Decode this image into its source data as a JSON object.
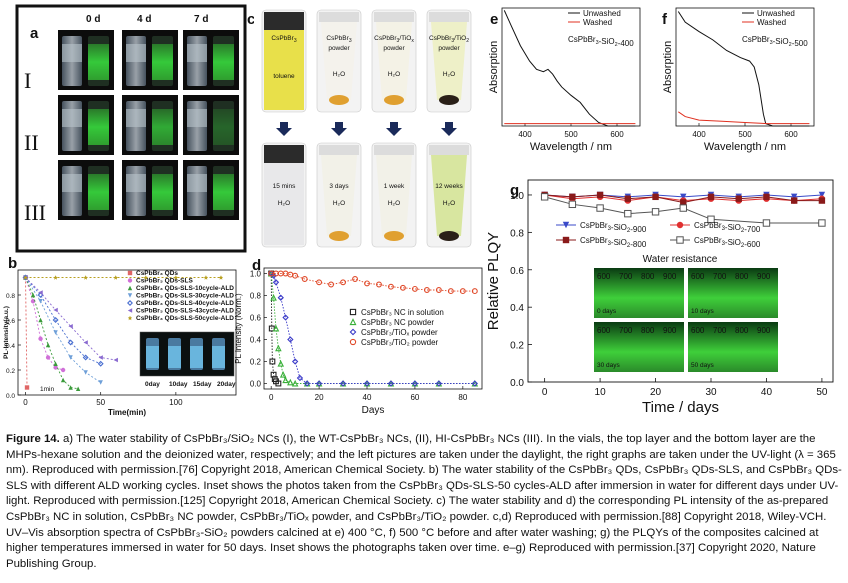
{
  "panel_a": {
    "letter": "a",
    "time_labels": [
      "0 d",
      "4 d",
      "7 d"
    ],
    "row_labels": [
      "I",
      "II",
      "III"
    ]
  },
  "panel_c": {
    "letter": "c",
    "top_labels": [
      {
        "main": "CsPbBr",
        "sub": "3",
        "tail": "",
        "line2": "toluene"
      },
      {
        "main": "CsPbBr",
        "sub": "3",
        "tail": "",
        "line2": "powder",
        "line3": "H₂O"
      },
      {
        "main": "CsPbBr",
        "sub": "3",
        "tail": "/TiO",
        "sub2": "x",
        "line2": "powder",
        "line3": "H₂O"
      },
      {
        "main": "CsPbBr",
        "sub": "3",
        "tail": "/TiO",
        "sub2": "2",
        "line2": "powder",
        "line3": "H₂O"
      }
    ],
    "bottom_labels": [
      "15 mins",
      "3 days",
      "1 week",
      "12 weeks"
    ],
    "bottom_solvent": "H₂O"
  },
  "caption": {
    "lead": "Figure 14.",
    "text": " a) The water stability of CsPbBr₃/SiO₂ NCs (I), the WT-CsPbBr₃ NCs, (II), HI-CsPbBr₃ NCs (III). In the vials, the top layer and the bottom layer are the MHPs-hexane solution and the deionized water, respectively; and the left pictures are taken under the daylight, the right graphs are taken under the UV-light (λ = 365 nm). Reproduced with permission.[76] Copyright 2018, American Chemical Society. b) The water stability of the CsPbBr₃ QDs, CsPbBr₃ QDs-SLS, and CsPbBr₃ QDs-SLS with different ALD working cycles. Inset shows the photos taken from the CsPbBr₃ QDs-SLS-50 cycles-ALD after immersion in water for different days under UV-light. Reproduced with permission.[125] Copyright 2018, American Chemical Society. c) The water stability and d) the corresponding PL intensity of the as-prepared CsPbBr₃ NC in solution, CsPbBr₃ NC powder, CsPbBr₃/TiOₓ powder, and CsPbBr₃/TiO₂ powder. c,d) Reproduced with permission.[88] Copyright 2018, Wiley-VCH. UV–Vis absorption spectra of CsPbBr₃-SiO₂ powders calcined at e) 400 °C, f) 500 °C before and after water washing; g) the PLQYs of the composites calcined at higher temperatures immersed in water for 50 days. Inset shows the photographs taken over time. e–g) Reproduced with permission.[37] Copyright 2020, Nature Publishing Group."
  },
  "chart_data": [
    {
      "panel": "b",
      "type": "line",
      "xlabel": "Time(min)",
      "ylabel": "PL-Intensity(a.u.)",
      "xlim": [
        -5,
        140
      ],
      "ylim": [
        0,
        1.0
      ],
      "xticks": [
        0,
        50,
        100
      ],
      "yticks": [
        0.0,
        0.2,
        0.4,
        0.6,
        0.8
      ],
      "annotation": "1min",
      "inset_labels": [
        "0day",
        "10day",
        "15day",
        "20day"
      ],
      "series": [
        {
          "name": "CsPbBr₃ QDs",
          "color": "#e06666",
          "marker": "square",
          "x": [
            0,
            1
          ],
          "y": [
            0.94,
            0.06
          ]
        },
        {
          "name": "CsPbBr₃ QDs-SLS",
          "color": "#d070d8",
          "marker": "circle",
          "x": [
            0,
            5,
            10,
            15,
            20,
            25
          ],
          "y": [
            0.94,
            0.75,
            0.45,
            0.3,
            0.22,
            0.2
          ]
        },
        {
          "name": "CsPbBr₃ QDs-SLS-10cycle-ALD",
          "color": "#3a9a3a",
          "marker": "triangle",
          "x": [
            0,
            5,
            10,
            15,
            20,
            25,
            30,
            35
          ],
          "y": [
            0.94,
            0.8,
            0.6,
            0.4,
            0.25,
            0.12,
            0.06,
            0.05
          ]
        },
        {
          "name": "CsPbBr₃ QDs-SLS-30cycle-ALD",
          "color": "#6e9fd8",
          "marker": "triangle-down",
          "x": [
            0,
            10,
            20,
            30,
            40,
            50
          ],
          "y": [
            0.94,
            0.75,
            0.5,
            0.3,
            0.18,
            0.1
          ]
        },
        {
          "name": "CsPbBr₃ QDs-SLS-40cycle-ALD",
          "color": "#4a6fd0",
          "marker": "diamond",
          "x": [
            0,
            10,
            20,
            30,
            40,
            50
          ],
          "y": [
            0.94,
            0.8,
            0.6,
            0.42,
            0.3,
            0.25
          ]
        },
        {
          "name": "CsPbBr₃ QDs-SLS-43cycle-ALD",
          "color": "#8a6ad0",
          "marker": "triangle-left",
          "x": [
            0,
            10,
            20,
            30,
            40,
            50,
            60
          ],
          "y": [
            0.94,
            0.82,
            0.68,
            0.55,
            0.42,
            0.3,
            0.28
          ]
        },
        {
          "name": "CsPbBr₃ QDs-SLS-50cycle-ALD",
          "color": "#b8a020",
          "marker": "star",
          "x": [
            0,
            20,
            40,
            60,
            80,
            100,
            120,
            130
          ],
          "y": [
            0.94,
            0.94,
            0.94,
            0.94,
            0.94,
            0.94,
            0.94,
            0.94
          ]
        }
      ]
    },
    {
      "panel": "d",
      "type": "scatter",
      "xlabel": "Days",
      "ylabel": "PL intensity (Norm.)",
      "xlim": [
        -3,
        88
      ],
      "ylim": [
        -0.05,
        1.05
      ],
      "xticks": [
        0,
        20,
        40,
        60,
        80
      ],
      "yticks": [
        0.0,
        0.2,
        0.4,
        0.6,
        0.8,
        1.0
      ],
      "series": [
        {
          "name": "CsPbBr₃ NC in solution",
          "color": "#222222",
          "marker": "square",
          "x": [
            0,
            0.25,
            0.5,
            1,
            1.5,
            2,
            3
          ],
          "y": [
            1.0,
            0.5,
            0.2,
            0.08,
            0.04,
            0.02,
            0.0
          ]
        },
        {
          "name": "CsPbBr₃ NC powder",
          "color": "#3ab03a",
          "marker": "triangle",
          "x": [
            0,
            1,
            2,
            3,
            4,
            5,
            6,
            8,
            10,
            15,
            20,
            30,
            40,
            50,
            60,
            70,
            85
          ],
          "y": [
            1.0,
            0.78,
            0.5,
            0.32,
            0.18,
            0.08,
            0.03,
            0.01,
            0.0,
            0.0,
            0.0,
            0.0,
            0.0,
            0.0,
            0.0,
            0.0,
            0.0
          ]
        },
        {
          "name": "CsPbBr₃/TiOₓ powder",
          "color": "#3a3ac8",
          "marker": "diamond",
          "x": [
            0,
            1,
            2,
            4,
            6,
            8,
            10,
            12,
            15,
            20,
            30,
            40,
            50,
            60,
            70,
            85
          ],
          "y": [
            1.0,
            0.98,
            0.92,
            0.78,
            0.6,
            0.4,
            0.2,
            0.05,
            0.0,
            0.0,
            0.0,
            0.0,
            0.0,
            0.0,
            0.0,
            0.0
          ]
        },
        {
          "name": "CsPbBr₃/TiO₂ powder",
          "color": "#e04a2a",
          "marker": "circle",
          "x": [
            0,
            2,
            4,
            6,
            8,
            10,
            14,
            20,
            25,
            30,
            35,
            40,
            45,
            50,
            55,
            60,
            65,
            70,
            75,
            80,
            85
          ],
          "y": [
            1.0,
            1.0,
            1.0,
            1.0,
            0.99,
            0.98,
            0.95,
            0.92,
            0.9,
            0.92,
            0.95,
            0.91,
            0.9,
            0.88,
            0.87,
            0.86,
            0.85,
            0.85,
            0.84,
            0.84,
            0.84
          ]
        }
      ]
    },
    {
      "panel": "e",
      "type": "line",
      "xlabel": "Wavelength / nm",
      "ylabel": "Absorption",
      "xlim": [
        350,
        650
      ],
      "ylim": [
        0,
        1
      ],
      "xticks": [
        400,
        500,
        600
      ],
      "label": "CsPbBr₃-SiO₂-400",
      "series": [
        {
          "name": "Unwashed",
          "color": "#111111",
          "x": [
            355,
            370,
            390,
            410,
            425,
            440,
            450,
            460,
            470,
            480,
            500,
            520,
            540,
            560,
            580,
            600,
            640
          ],
          "y": [
            0.98,
            0.85,
            0.68,
            0.55,
            0.48,
            0.46,
            0.48,
            0.44,
            0.38,
            0.33,
            0.26,
            0.2,
            0.1,
            0.03,
            0.0,
            0.0,
            0.0
          ]
        },
        {
          "name": "Washed",
          "color": "#e03020",
          "x": [
            355,
            400,
            500,
            600,
            640
          ],
          "y": [
            0.02,
            0.02,
            0.02,
            0.02,
            0.02
          ]
        }
      ]
    },
    {
      "panel": "f",
      "type": "line",
      "xlabel": "Wavelength / nm",
      "ylabel": "Absorption",
      "xlim": [
        350,
        650
      ],
      "ylim": [
        0,
        1
      ],
      "xticks": [
        400,
        500,
        600
      ],
      "label": "CsPbBr₃-SiO₂-500",
      "series": [
        {
          "name": "Unwashed",
          "color": "#111111",
          "x": [
            355,
            370,
            400,
            430,
            460,
            490,
            510,
            520,
            530,
            540,
            545,
            560,
            600,
            640
          ],
          "y": [
            0.97,
            0.88,
            0.8,
            0.73,
            0.64,
            0.58,
            0.55,
            0.5,
            0.35,
            0.1,
            0.02,
            0.0,
            0.0,
            0.0
          ]
        },
        {
          "name": "Washed",
          "color": "#e03020",
          "x": [
            355,
            370,
            400,
            450,
            500,
            550,
            640
          ],
          "y": [
            0.12,
            0.08,
            0.05,
            0.04,
            0.03,
            0.02,
            0.02
          ]
        }
      ]
    },
    {
      "panel": "g",
      "type": "line",
      "xlabel": "Time / days",
      "ylabel": "Relative PLQY",
      "xlim": [
        -3,
        52
      ],
      "ylim": [
        0,
        1.08
      ],
      "xticks": [
        0,
        10,
        20,
        30,
        40,
        50
      ],
      "yticks": [
        0.0,
        0.2,
        0.4,
        0.6,
        0.8,
        1.0
      ],
      "inset_title": "Water resistance",
      "inset_temps": [
        "600",
        "700",
        "800",
        "900"
      ],
      "inset_days": [
        "0 days",
        "10 days",
        "30 days",
        "50 days"
      ],
      "series": [
        {
          "name": "CsPbBr₃-SiO₂-900",
          "color": "#3a4ac8",
          "marker": "triangle-down",
          "x": [
            0,
            5,
            10,
            15,
            20,
            25,
            30,
            35,
            40,
            45,
            50
          ],
          "y": [
            1.0,
            0.99,
            1.0,
            0.99,
            1.0,
            0.99,
            1.0,
            0.99,
            1.0,
            0.99,
            1.0
          ]
        },
        {
          "name": "CsPbBr₃-SiO₂-700",
          "color": "#e03030",
          "marker": "circle",
          "x": [
            0,
            5,
            10,
            15,
            20,
            25,
            30,
            35,
            40,
            45,
            50
          ],
          "y": [
            1.0,
            0.98,
            0.99,
            0.97,
            0.99,
            0.97,
            0.98,
            0.97,
            0.98,
            0.97,
            0.98
          ]
        },
        {
          "name": "CsPbBr₃-SiO₂-800",
          "color": "#8a1a1a",
          "marker": "square",
          "x": [
            0,
            5,
            10,
            15,
            20,
            25,
            30,
            35,
            40,
            45,
            50
          ],
          "y": [
            1.0,
            0.99,
            1.0,
            0.98,
            0.99,
            0.96,
            0.99,
            0.98,
            0.99,
            0.97,
            0.97
          ]
        },
        {
          "name": "CsPbBr₃-SiO₂-600",
          "color": "#555555",
          "marker": "square-open",
          "x": [
            0,
            5,
            10,
            15,
            20,
            25,
            30,
            40,
            50
          ],
          "y": [
            0.99,
            0.95,
            0.93,
            0.9,
            0.91,
            0.93,
            0.87,
            0.85,
            0.85
          ]
        }
      ]
    }
  ]
}
